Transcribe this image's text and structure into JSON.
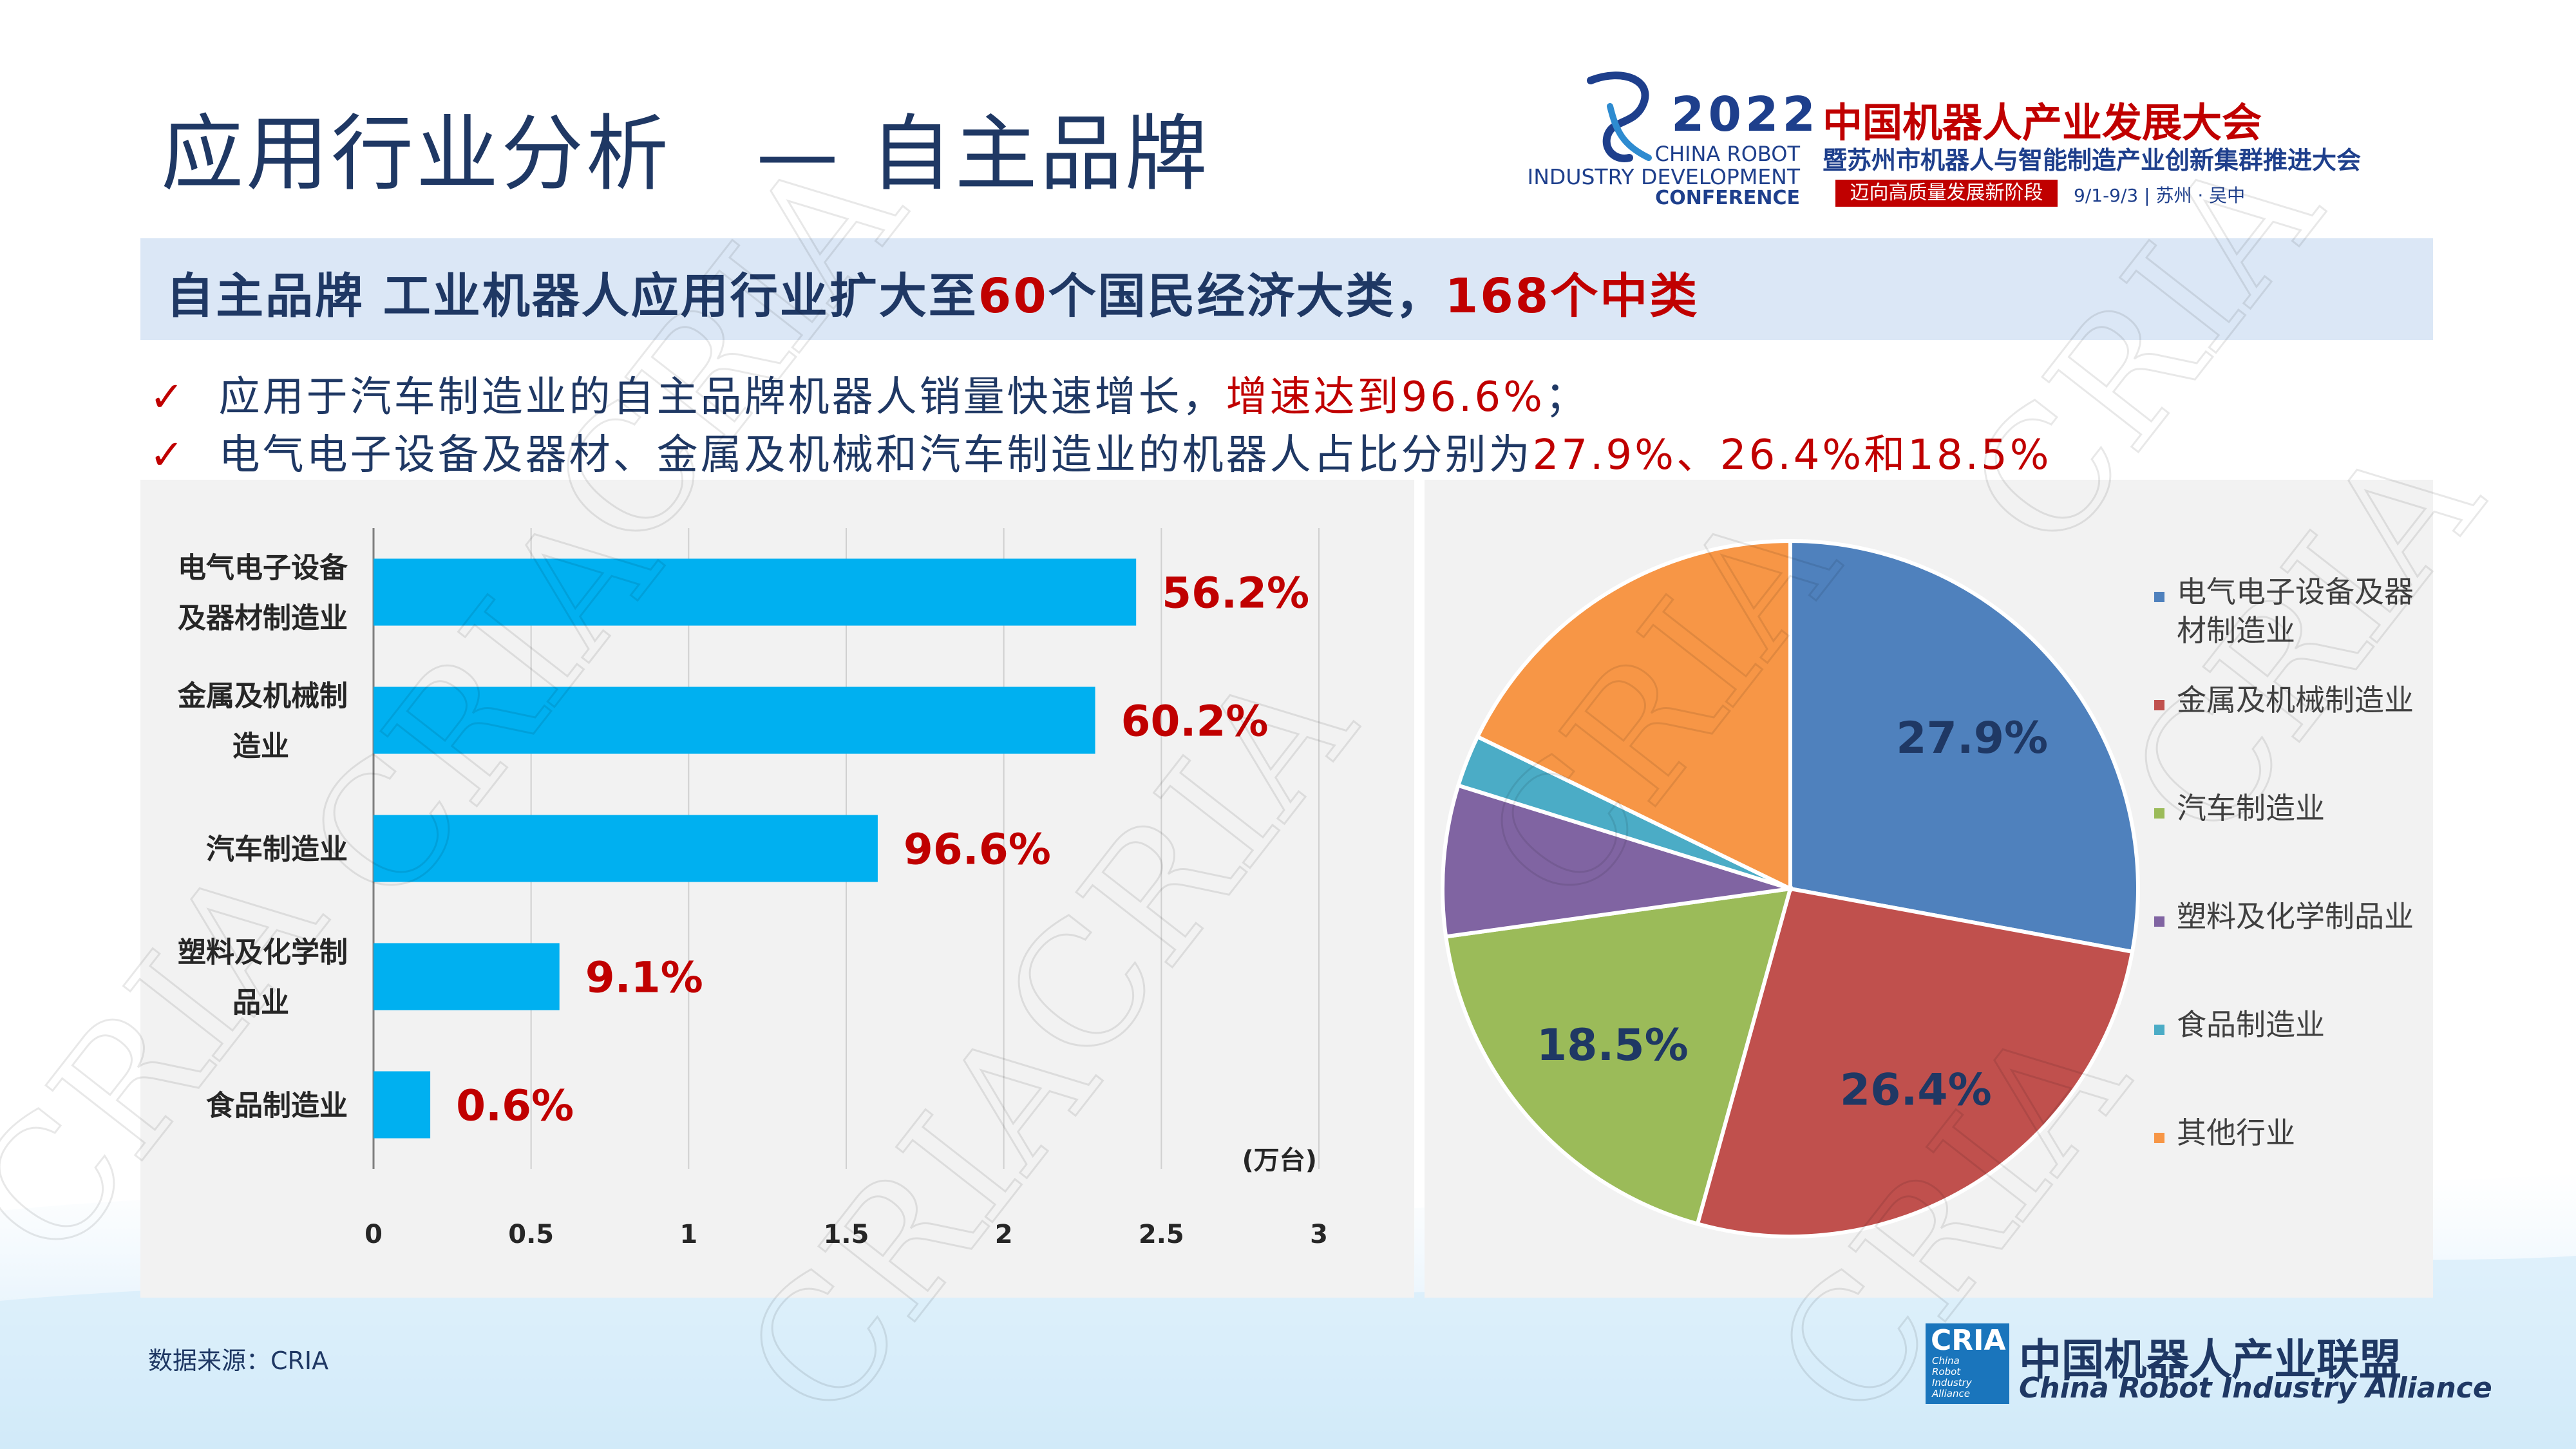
{
  "header": {
    "title": "应用行业分析　— 自主品牌",
    "conference": {
      "year": "2022",
      "en_line1": "CHINA ROBOT",
      "en_line2": "INDUSTRY DEVELOPMENT",
      "en_line3": "CONFERENCE",
      "cn_line1": "中国机器人产业发展大会",
      "cn_line2": "暨苏州市机器人与智能制造产业创新集群推进大会",
      "slogan": "迈向高质量发展新阶段",
      "date_place": "9/1-9/3 | 苏州 · 吴中"
    }
  },
  "headline": {
    "prefix": "自主品牌 工业机器人应用行业扩大至",
    "num1": "60",
    "mid": "个国民经济大类，",
    "num2": "168",
    "suffix": "个中类"
  },
  "bullets": [
    {
      "check": "✓",
      "text": "应用于汽车制造业的自主品牌机器人销量快速增长，",
      "highlight": "增速达到96.6%",
      "tail": "；"
    },
    {
      "check": "✓",
      "text": "电气电子设备及器材、金属及机械和汽车制造业的机器人占比分别为",
      "highlight": "27.9%、26.4%和18.5%",
      "tail": ""
    }
  ],
  "colors": {
    "bar": "#00b0f0",
    "bar_label": "#c00000",
    "pie": [
      "#4f81bd",
      "#c0504d",
      "#9bbb59",
      "#8064a2",
      "#4bacc6",
      "#f79646"
    ]
  },
  "chart_data": [
    {
      "type": "bar",
      "orientation": "horizontal",
      "categories": [
        [
          "电气电子设备",
          "及器材制造业"
        ],
        [
          "金属及机械制",
          "造业"
        ],
        [
          "汽车制造业"
        ],
        [
          "塑料及化学制",
          "品业"
        ],
        [
          "食品制造业"
        ]
      ],
      "values": [
        2.42,
        2.29,
        1.6,
        0.59,
        0.18
      ],
      "data_labels": [
        "56.2%",
        "60.2%",
        "96.6%",
        "9.1%",
        "0.6%"
      ],
      "xlim": [
        0,
        3
      ],
      "xticks": [
        0,
        0.5,
        1,
        1.5,
        2,
        2.5,
        3
      ],
      "xtick_labels": [
        "0",
        "0.5",
        "1",
        "1.5",
        "2",
        "2.5",
        "3"
      ],
      "unit_label": "(万台)",
      "grid": true
    },
    {
      "type": "pie",
      "labels": [
        "电气电子设备及器材制造业",
        "金属及机械制造业",
        "汽车制造业",
        "塑料及化学制品业",
        "食品制造业",
        "其他行业"
      ],
      "legend_lines": [
        [
          "电气电子设备及器",
          "材制造业"
        ],
        [
          "金属及机械制造业"
        ],
        [
          "汽车制造业"
        ],
        [
          "塑料及化学制品业"
        ],
        [
          "食品制造业"
        ],
        [
          "其他行业"
        ]
      ],
      "values": [
        27.9,
        26.4,
        18.5,
        7.0,
        2.4,
        17.8
      ],
      "data_labels": [
        "27.9%",
        "26.4%",
        "18.5%",
        "",
        "",
        ""
      ],
      "legend_position": "right"
    }
  ],
  "footer": {
    "source": "数据来源：CRIA",
    "org_logo": "CRIA",
    "org_logo_sub": [
      "China",
      "Robot",
      "Industry",
      "Alliance"
    ],
    "org_name_cn": "中国机器人产业联盟",
    "org_name_en": "China Robot Industry Alliance"
  },
  "watermark": "CRIA"
}
